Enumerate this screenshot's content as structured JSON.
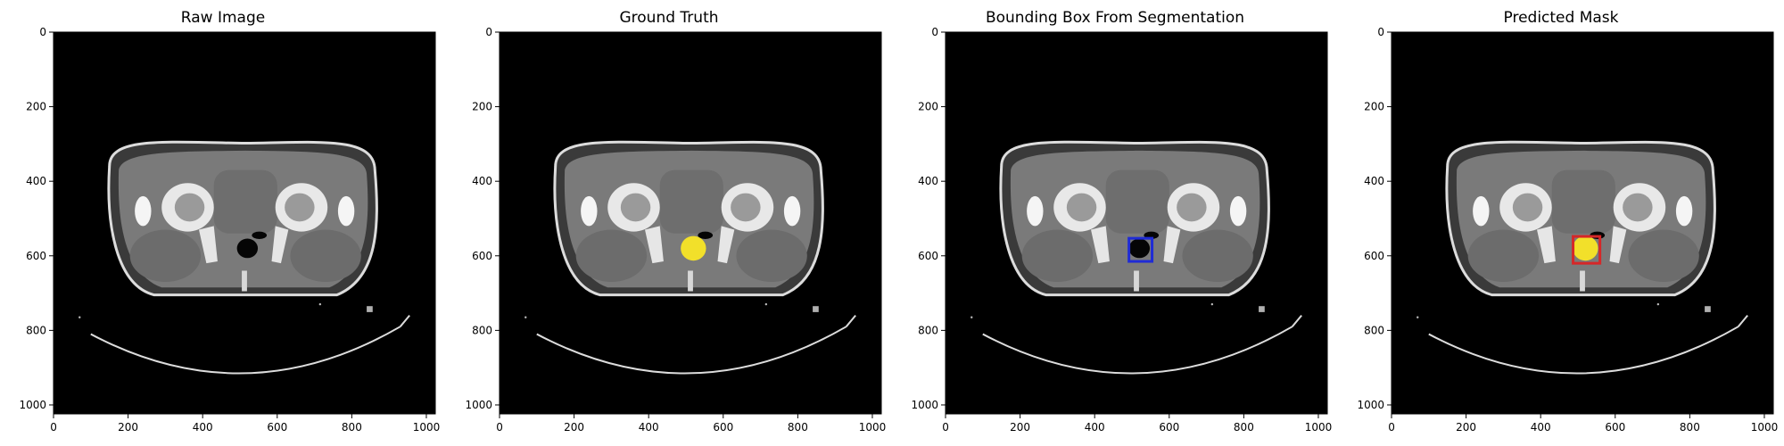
{
  "figure": {
    "panels": [
      {
        "title": "Raw Image",
        "overlay": "none"
      },
      {
        "title": "Ground Truth",
        "overlay": "mask"
      },
      {
        "title": "Bounding Box From Segmentation",
        "overlay": "box"
      },
      {
        "title": "Predicted Mask",
        "overlay": "mask-box"
      }
    ],
    "axis": {
      "x_ticks": [
        "0",
        "200",
        "400",
        "600",
        "800",
        "1000"
      ],
      "y_ticks": [
        "0",
        "200",
        "400",
        "600",
        "800",
        "1000"
      ],
      "xlim": [
        0,
        1024
      ],
      "ylim": [
        1024,
        0
      ]
    },
    "colors": {
      "mask": "#f2e02a",
      "seg_box": "#1f2bd6",
      "pred_box": "#d62728",
      "background": "#000000"
    }
  }
}
